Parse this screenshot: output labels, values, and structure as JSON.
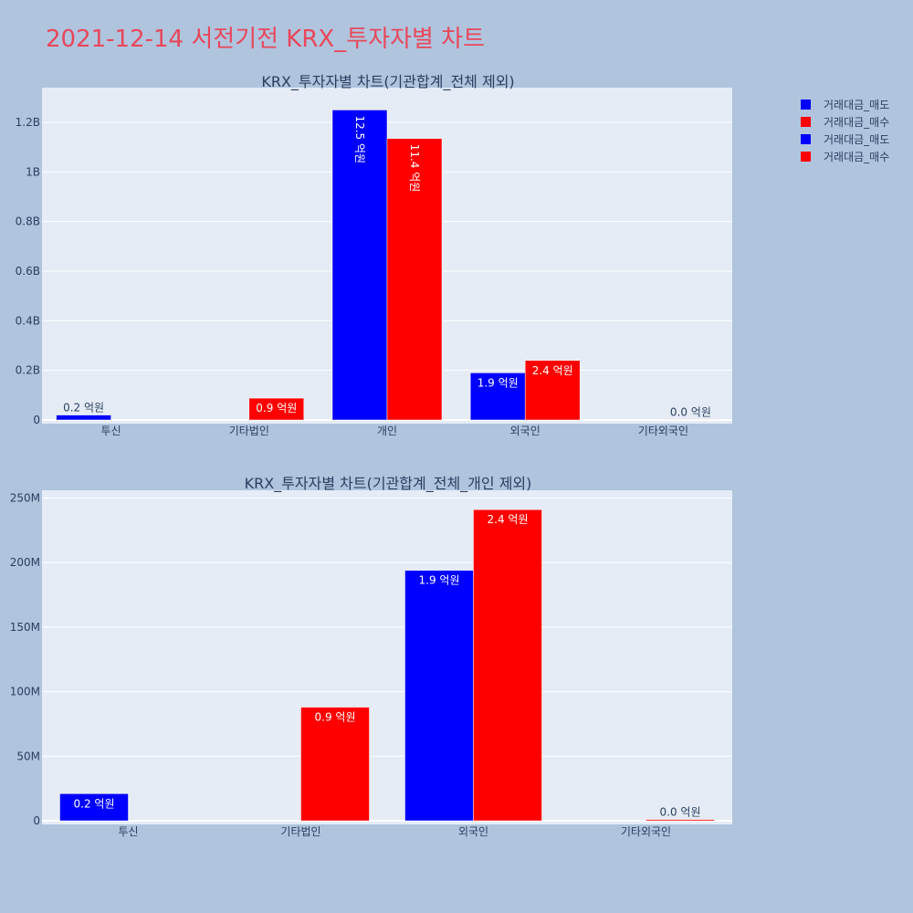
{
  "title": "2021-12-14 서전기전 KRX_투자자별 차트",
  "legend": [
    {
      "label": "거래대금_매도",
      "color": "#0000ff"
    },
    {
      "label": "거래대금_매수",
      "color": "#ff0000"
    },
    {
      "label": "거래대금_매도",
      "color": "#0000ff"
    },
    {
      "label": "거래대금_매수",
      "color": "#ff0000"
    }
  ],
  "chart_data": [
    {
      "type": "bar",
      "title": "KRX_투자자별 차트(기관합계_전체 제외)",
      "categories": [
        "투신",
        "기타법인",
        "개인",
        "외국인",
        "기타외국인"
      ],
      "series": [
        {
          "name": "거래대금_매도",
          "color": "#0000ff",
          "values": [
            20000000,
            0,
            1250000000,
            190000000,
            0
          ],
          "labels": [
            "0.2 억원",
            "",
            "12.5 억원",
            "1.9 억원",
            ""
          ]
        },
        {
          "name": "거래대금_매수",
          "color": "#ff0000",
          "values": [
            0,
            88000000,
            1135000000,
            240000000,
            2000000
          ],
          "labels": [
            "",
            "0.9 억원",
            "11.4 억원",
            "2.4 억원",
            "0.0 억원"
          ]
        }
      ],
      "ylim": [
        0,
        1340000000
      ],
      "yticks": [
        0,
        200000000,
        400000000,
        600000000,
        800000000,
        1000000000,
        1200000000
      ],
      "ytick_labels": [
        "0",
        "0.2B",
        "0.4B",
        "0.6B",
        "0.8B",
        "1B",
        "1.2B"
      ],
      "grid": true,
      "xlabel": "",
      "ylabel": ""
    },
    {
      "type": "bar",
      "title": "KRX_투자자별 차트(기관합계_전체_개인 제외)",
      "categories": [
        "투신",
        "기타법인",
        "외국인",
        "기타외국인"
      ],
      "series": [
        {
          "name": "거래대금_매도",
          "color": "#0000ff",
          "values": [
            21000000,
            0,
            194000000,
            0
          ],
          "labels": [
            "0.2 억원",
            "",
            "1.9 억원",
            ""
          ]
        },
        {
          "name": "거래대금_매수",
          "color": "#ff0000",
          "values": [
            0,
            88000000,
            241000000,
            1000000
          ],
          "labels": [
            "",
            "0.9 억원",
            "2.4 억원",
            "0.0 억원"
          ]
        }
      ],
      "ylim": [
        0,
        256000000
      ],
      "yticks": [
        0,
        50000000,
        100000000,
        150000000,
        200000000,
        250000000
      ],
      "ytick_labels": [
        "0",
        "50M",
        "100M",
        "150M",
        "200M",
        "250M"
      ],
      "grid": true,
      "xlabel": "",
      "ylabel": ""
    }
  ]
}
